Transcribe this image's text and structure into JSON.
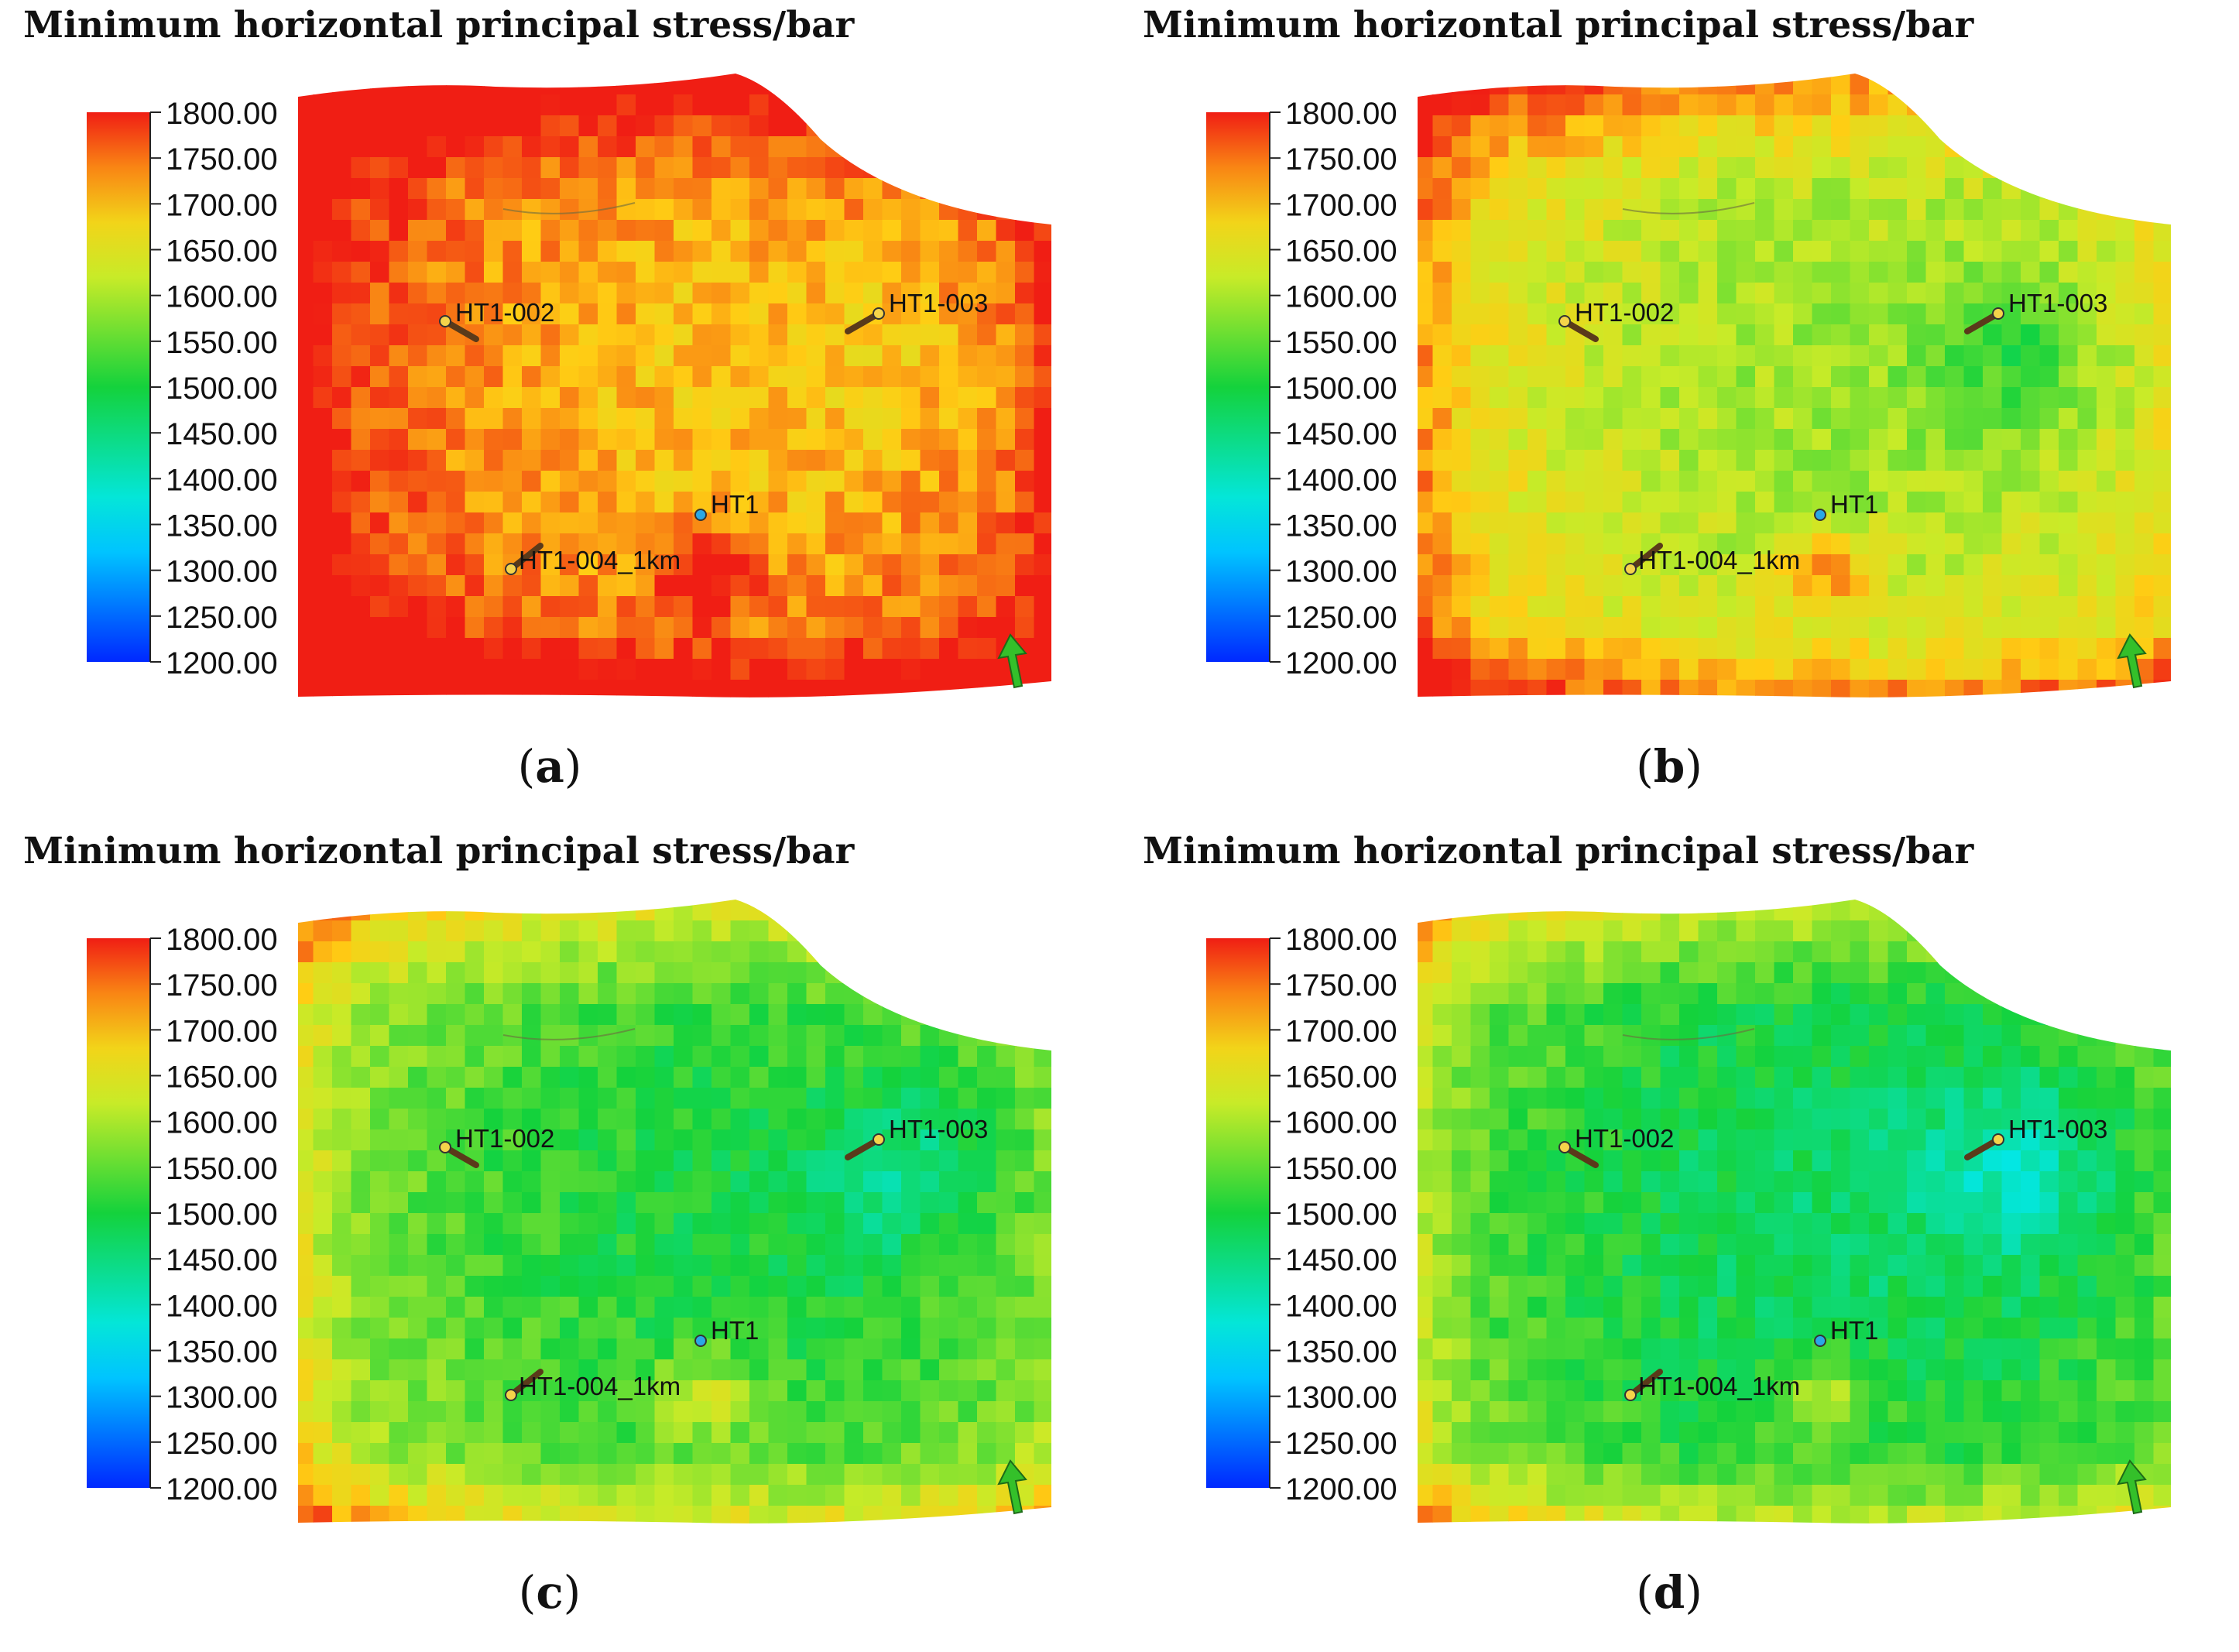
{
  "chart_data": [
    {
      "type": "heatmap",
      "title": "Minimum horizontal principal stress/bar",
      "caption": "a",
      "colorbar": {
        "min": 1200,
        "max": 1800,
        "ticks": [
          "1800.00",
          "1750.00",
          "1700.00",
          "1650.00",
          "1600.00",
          "1550.00",
          "1500.00",
          "1450.00",
          "1400.00",
          "1350.00",
          "1300.00",
          "1250.00",
          "1200.00"
        ]
      },
      "typical_stress_bar": 1700,
      "wells": [
        "HT1-002",
        "HT1-003",
        "HT1",
        "HT1-004_1km"
      ]
    },
    {
      "type": "heatmap",
      "title": "Minimum horizontal principal stress/bar",
      "caption": "b",
      "colorbar": {
        "min": 1200,
        "max": 1800,
        "ticks": [
          "1800.00",
          "1750.00",
          "1700.00",
          "1650.00",
          "1600.00",
          "1550.00",
          "1500.00",
          "1450.00",
          "1400.00",
          "1350.00",
          "1300.00",
          "1250.00",
          "1200.00"
        ]
      },
      "typical_stress_bar": 1590,
      "wells": [
        "HT1-002",
        "HT1-003",
        "HT1",
        "HT1-004_1km"
      ]
    },
    {
      "type": "heatmap",
      "title": "Minimum horizontal principal stress/bar",
      "caption": "c",
      "colorbar": {
        "min": 1200,
        "max": 1800,
        "ticks": [
          "1800.00",
          "1750.00",
          "1700.00",
          "1650.00",
          "1600.00",
          "1550.00",
          "1500.00",
          "1450.00",
          "1400.00",
          "1350.00",
          "1300.00",
          "1250.00",
          "1200.00"
        ]
      },
      "typical_stress_bar": 1500,
      "wells": [
        "HT1-002",
        "HT1-003",
        "HT1",
        "HT1-004_1km"
      ]
    },
    {
      "type": "heatmap",
      "title": "Minimum horizontal principal stress/bar",
      "caption": "d",
      "colorbar": {
        "min": 1200,
        "max": 1800,
        "ticks": [
          "1800.00",
          "1750.00",
          "1700.00",
          "1650.00",
          "1600.00",
          "1550.00",
          "1500.00",
          "1450.00",
          "1400.00",
          "1350.00",
          "1300.00",
          "1250.00",
          "1200.00"
        ]
      },
      "typical_stress_bar": 1470,
      "wells": [
        "HT1-002",
        "HT1-003",
        "HT1",
        "HT1-004_1km"
      ]
    }
  ]
}
